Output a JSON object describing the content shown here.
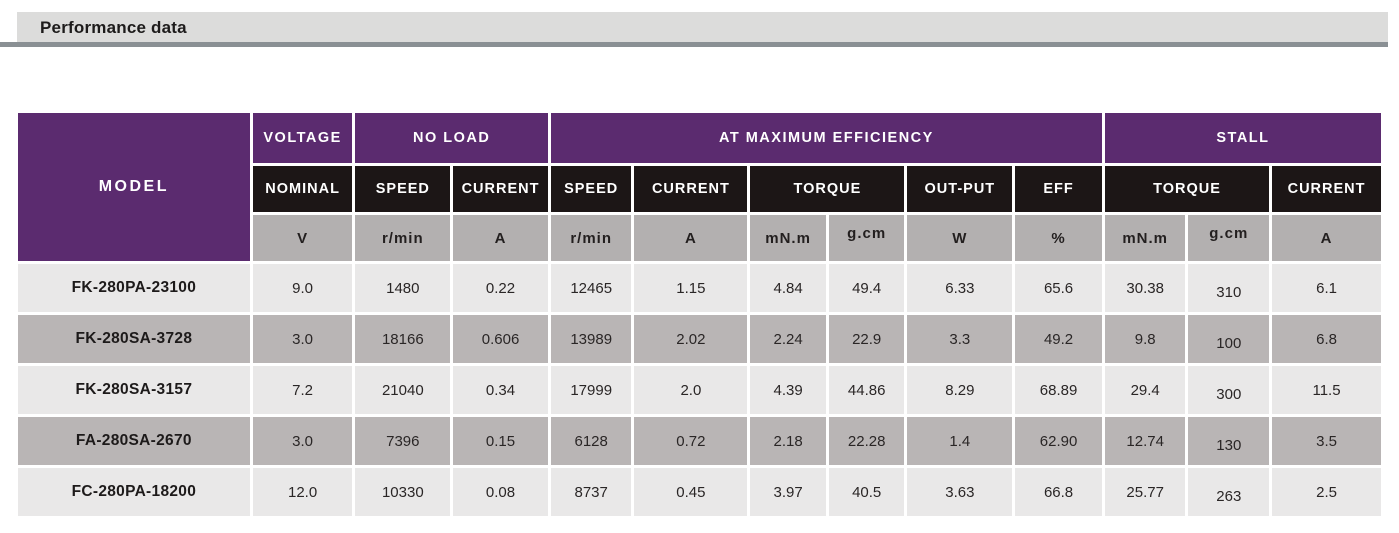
{
  "header": {
    "title": "Performance data"
  },
  "colors": {
    "purple": "#5b2b6f",
    "black_header": "#1c1616",
    "units_gray": "#b3b0b0",
    "row_light": "#e9e8e8",
    "row_dark": "#b9b5b5",
    "title_bar_bg": "#dcdcdb",
    "title_bar_border": "#8a9094"
  },
  "table": {
    "groups": [
      "MODEL",
      "VOLTAGE",
      "NO LOAD",
      "AT MAXIMUM EFFICIENCY",
      "STALL"
    ],
    "subheaders": [
      "NOMINAL",
      "SPEED",
      "CURRENT",
      "SPEED",
      "CURRENT",
      "TORQUE",
      "OUT-PUT",
      "EFF",
      "TORQUE",
      "CURRENT"
    ],
    "units": [
      "V",
      "r/min",
      "A",
      "r/min",
      "A",
      "mN.m",
      "g.cm",
      "W",
      "%",
      "mN.m",
      "g.cm",
      "A"
    ],
    "rows": [
      {
        "model": "FK-280PA-23100",
        "values": [
          "9.0",
          "1480",
          "0.22",
          "12465",
          "1.15",
          "4.84",
          "49.4",
          "6.33",
          "65.6",
          "30.38",
          "310",
          "6.1"
        ]
      },
      {
        "model": "FK-280SA-3728",
        "values": [
          "3.0",
          "18166",
          "0.606",
          "13989",
          "2.02",
          "2.24",
          "22.9",
          "3.3",
          "49.2",
          "9.8",
          "100",
          "6.8"
        ]
      },
      {
        "model": "FK-280SA-3157",
        "values": [
          "7.2",
          "21040",
          "0.34",
          "17999",
          "2.0",
          "4.39",
          "44.86",
          "8.29",
          "68.89",
          "29.4",
          "300",
          "11.5"
        ]
      },
      {
        "model": "FA-280SA-2670",
        "values": [
          "3.0",
          "7396",
          "0.15",
          "6128",
          "0.72",
          "2.18",
          "22.28",
          "1.4",
          "62.90",
          "12.74",
          "130",
          "3.5"
        ]
      },
      {
        "model": "FC-280PA-18200",
        "values": [
          "12.0",
          "10330",
          "0.08",
          "8737",
          "0.45",
          "3.97",
          "40.5",
          "3.63",
          "66.8",
          "25.77",
          "263",
          "2.5"
        ]
      }
    ]
  }
}
